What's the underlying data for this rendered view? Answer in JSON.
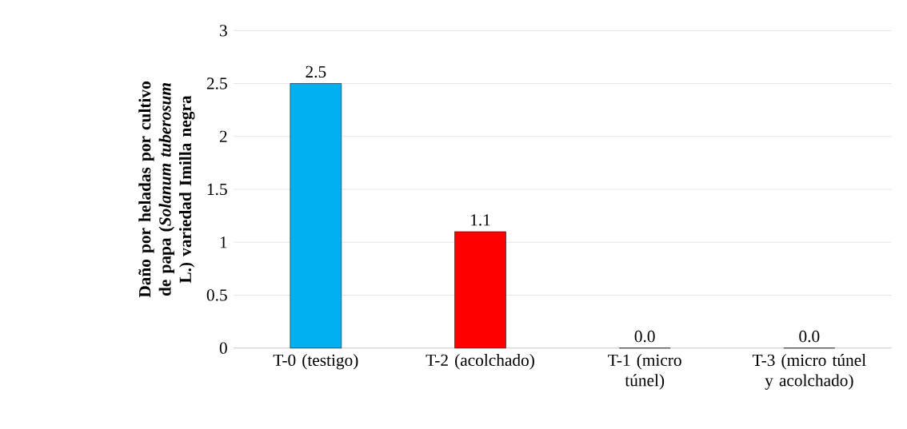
{
  "chart_data": {
    "type": "bar",
    "ylabel": "**Daño por heladas por cultivo de papa (*Solanum tuberosum* L.) variedad Imilla negra**",
    "categories": [
      "T-0 (testigo)",
      "T-2 (acolchado)",
      "T-1 (micro túnel)",
      "T-3 (micro túnel y acolchado)"
    ],
    "values": [
      2.5,
      1.1,
      0.0,
      0.0
    ],
    "colors": [
      "#00b0f0",
      "#ff0000",
      "#00b0f0",
      "#ff0000"
    ],
    "value_labels": [
      "2.5",
      "1.1",
      "0.0",
      "0.0"
    ],
    "ylim": [
      0,
      3
    ],
    "yticks": [
      0,
      0.5,
      1,
      1.5,
      2,
      2.5,
      3
    ],
    "grid": "y"
  }
}
